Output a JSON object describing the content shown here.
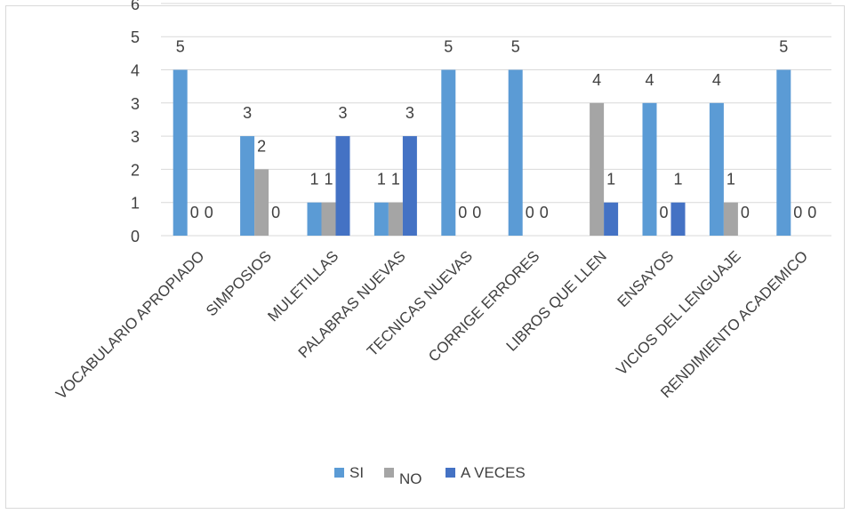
{
  "chart_data": {
    "type": "bar",
    "categories": [
      "VOCABULARIO APROPIADO",
      "SIMPOSIOS",
      "MULETILLAS",
      "PALABRAS NUEVAS",
      "TECNICAS NUEVAS",
      "CORRIGE ERRORES",
      "LIBROS QUE LLEN",
      "ENSAYOS",
      "VICIOS DEL LENGUAJE",
      "RENDIMIENTO ACADEMICO"
    ],
    "series": [
      {
        "name": "SI",
        "color": "#5b9bd5",
        "values": [
          5,
          3,
          1,
          1,
          5,
          5,
          0,
          4,
          4,
          5
        ]
      },
      {
        "name": "NO",
        "color": "#a5a5a5",
        "values": [
          0,
          2,
          1,
          1,
          0,
          0,
          4,
          0,
          1,
          0
        ]
      },
      {
        "name": "A VECES",
        "color": "#4472c4",
        "values": [
          0,
          0,
          3,
          3,
          0,
          0,
          1,
          1,
          0,
          0
        ]
      }
    ],
    "y_ticks": [
      "0",
      "1",
      "2",
      "3",
      "3",
      "4",
      "5",
      "6"
    ],
    "ylim": [
      0,
      6
    ],
    "grid": true,
    "legend_position": "bottom",
    "data_labels": [
      [
        "5",
        "3",
        "1",
        "1",
        "5",
        "5",
        "",
        "4",
        "4",
        "5"
      ],
      [
        "0",
        "2",
        "1",
        "1",
        "0",
        "0",
        "4",
        "0",
        "1",
        "0"
      ],
      [
        "0",
        "0",
        "3",
        "3",
        "0",
        "0",
        "1",
        "1",
        "0",
        "0"
      ]
    ]
  }
}
